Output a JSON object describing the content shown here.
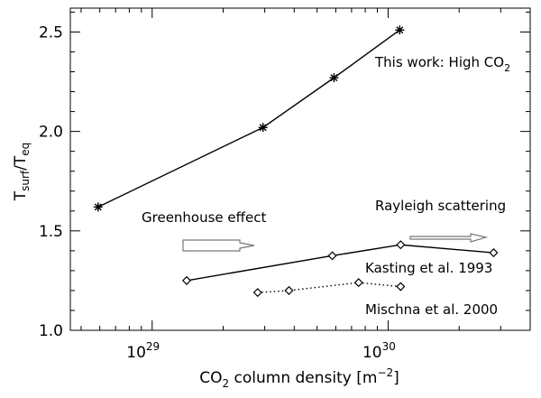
{
  "chart_data": {
    "type": "line",
    "xscale": "log",
    "xlim": [
      4.5e+28,
      4e+30
    ],
    "ylim": [
      1.0,
      2.62
    ],
    "xlabel": {
      "main": "CO",
      "sub": "2",
      "rest": " column density [m",
      "sup": "−2",
      "close": "]"
    },
    "ylabel": {
      "main": "T",
      "sub1": "surf",
      "mid": "/T",
      "sub2": "eq"
    },
    "y_ticks": [
      {
        "value": 1.0,
        "label": "1.0"
      },
      {
        "value": 1.5,
        "label": "1.5"
      },
      {
        "value": 2.0,
        "label": "2.0"
      },
      {
        "value": 2.5,
        "label": "2.5"
      }
    ],
    "x_ticks": [
      {
        "value": 1e+29,
        "base": "10",
        "exp": "29"
      },
      {
        "value": 1e+30,
        "base": "10",
        "exp": "30"
      }
    ],
    "series": [
      {
        "name": "This work: High CO2",
        "marker": "asterisk",
        "style": "solid",
        "points": [
          [
            5.9e+28,
            1.62
          ],
          [
            2.95e+29,
            2.02
          ],
          [
            5.9e+29,
            2.27
          ],
          [
            1.12e+30,
            2.51
          ]
        ]
      },
      {
        "name": "Kasting et al. 1993",
        "marker": "diamond",
        "style": "solid",
        "points": [
          [
            1.4e+29,
            1.25
          ],
          [
            5.8e+29,
            1.375
          ],
          [
            1.13e+30,
            1.43
          ],
          [
            2.8e+30,
            1.39
          ]
        ]
      },
      {
        "name": "Mischna et al. 2000",
        "marker": "diamond",
        "style": "dotted",
        "points": [
          [
            2.8e+29,
            1.19
          ],
          [
            3.8e+29,
            1.2
          ],
          [
            7.5e+29,
            1.24
          ],
          [
            1.13e+30,
            1.22
          ]
        ]
      }
    ],
    "annotations": {
      "this_work": {
        "text": "This work: High CO",
        "sub": "2"
      },
      "kasting": "Kasting et al. 1993",
      "mischna": "Mischna et al. 2000",
      "greenhouse": "Greenhouse effect",
      "rayleigh": "Rayleigh scattering"
    }
  }
}
